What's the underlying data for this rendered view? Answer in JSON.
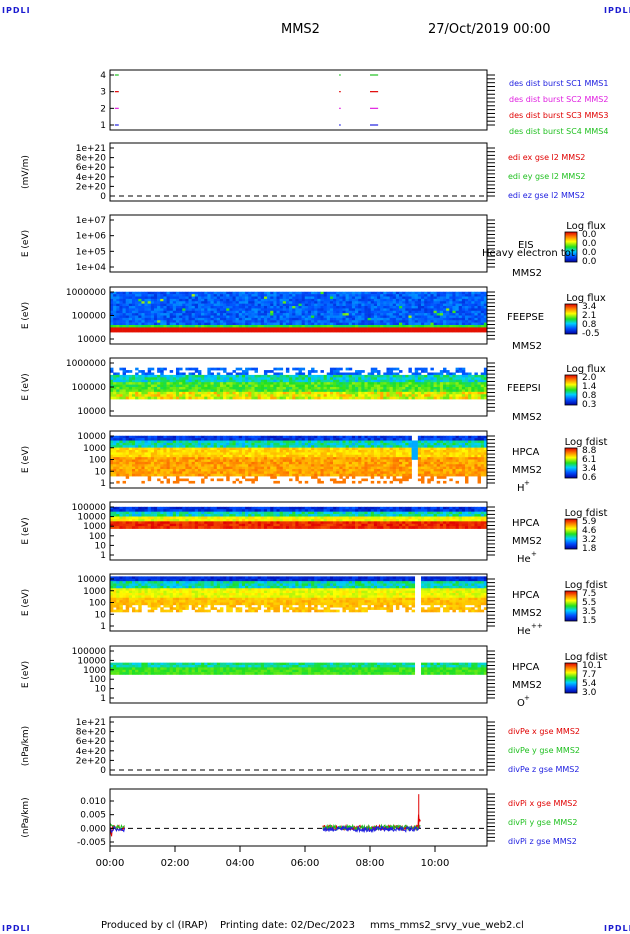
{
  "header": {
    "corner_tl": "IPDLI",
    "corner_tr": "IPDLI",
    "corner_bl": "IPDLI",
    "corner_br": "IPDLI",
    "spacecraft": "MMS2",
    "date": "27/Oct/2019 00:00"
  },
  "footer": {
    "produced_by": "Produced by cl (IRAP)",
    "printing_date": "Printing date: 02/Dec/2023",
    "script": "mms_mms2_srvy_vue_web2.cl"
  },
  "colors": {
    "mms1": "#2020e0",
    "mms2": "#e020e0",
    "mms3": "#e00000",
    "mms4": "#20c020",
    "x": "#e00000",
    "y": "#20c020",
    "z": "#2020e0"
  },
  "chart_data": [
    {
      "id": "burst",
      "type": "scatter",
      "ylabel": "",
      "yticks": [
        "1",
        "2",
        "3",
        "4"
      ],
      "ylim": [
        0.5,
        4.5
      ],
      "series": [
        {
          "name": "des dist burst SC1 MMS1",
          "color": "#2020e0",
          "level": 1,
          "x": [
            0.15,
            7.05,
            8.0
          ],
          "w": [
            0.12,
            0.05,
            0.25
          ]
        },
        {
          "name": "des dist burst SC2 MMS2",
          "color": "#e020e0",
          "level": 2,
          "x": [
            0.15,
            7.05,
            8.0
          ],
          "w": [
            0.12,
            0.05,
            0.25
          ]
        },
        {
          "name": "des dist burst SC3 MMS3",
          "color": "#e00000",
          "level": 3,
          "x": [
            0.15,
            7.05,
            8.0
          ],
          "w": [
            0.12,
            0.05,
            0.25
          ]
        },
        {
          "name": "des dist burst SC4 MMS4",
          "color": "#20c020",
          "level": 4,
          "x": [
            0.15,
            7.05,
            8.0
          ],
          "w": [
            0.12,
            0.05,
            0.25
          ]
        }
      ]
    },
    {
      "id": "edi",
      "type": "line",
      "ylabel": "(mV/m)",
      "yticks": [
        "0",
        "2e+20",
        "4e+20",
        "6e+20",
        "8e+20",
        "1e+21"
      ],
      "ylim": [
        0,
        1e+21
      ],
      "series": [
        {
          "name": "edi ex gse l2 MMS2",
          "color": "#e00000"
        },
        {
          "name": "edi ey gse l2 MMS2",
          "color": "#20c020"
        },
        {
          "name": "edi ez gse l2 MMS2",
          "color": "#2020e0"
        }
      ]
    },
    {
      "id": "eis",
      "type": "heatmap",
      "ylabel": "E (eV)",
      "yticks": [
        "1e+04",
        "1e+05",
        "1e+06",
        "1e+07"
      ],
      "instrument": "EIS",
      "mode_label": "Heavy electron tot",
      "sc": "MMS2",
      "colorbar_title": "Log flux",
      "colorbar_ticks": [
        "0.0",
        "0.0",
        "0.0",
        "0.0"
      ]
    },
    {
      "id": "feepse",
      "type": "heatmap",
      "ylabel": "E (eV)",
      "yticks": [
        "10000",
        "100000",
        "1000000"
      ],
      "instrument": "FEEPSE",
      "sc": "MMS2",
      "colorbar_title": "Log flux",
      "colorbar_ticks": [
        "3.4",
        "2.1",
        "0.8",
        "-0.5"
      ]
    },
    {
      "id": "feepsi",
      "type": "heatmap",
      "ylabel": "E (eV)",
      "yticks": [
        "10000",
        "100000",
        "1000000"
      ],
      "instrument": "FEEPSI",
      "sc": "MMS2",
      "colorbar_title": "Log flux",
      "colorbar_ticks": [
        "2.0",
        "1.4",
        "0.8",
        "0.3"
      ]
    },
    {
      "id": "hpca_h",
      "type": "heatmap",
      "ylabel": "E (eV)",
      "yticks": [
        "1",
        "10",
        "100",
        "1000",
        "10000"
      ],
      "instrument": "HPCA",
      "sc": "MMS2",
      "species": "H",
      "species_sup": "+",
      "colorbar_title": "Log fdist",
      "colorbar_ticks": [
        "8.8",
        "6.1",
        "3.4",
        "0.6"
      ]
    },
    {
      "id": "hpca_he1",
      "type": "heatmap",
      "ylabel": "E (eV)",
      "yticks": [
        "1",
        "10",
        "100",
        "1000",
        "10000",
        "100000"
      ],
      "instrument": "HPCA",
      "sc": "MMS2",
      "species": "He",
      "species_sup": "+",
      "colorbar_title": "Log fdist",
      "colorbar_ticks": [
        "5.9",
        "4.6",
        "3.2",
        "1.8"
      ]
    },
    {
      "id": "hpca_he2",
      "type": "heatmap",
      "ylabel": "E (eV)",
      "yticks": [
        "1",
        "10",
        "100",
        "1000",
        "10000"
      ],
      "instrument": "HPCA",
      "sc": "MMS2",
      "species": "He",
      "species_sup": "++",
      "colorbar_title": "Log fdist",
      "colorbar_ticks": [
        "7.5",
        "5.5",
        "3.5",
        "1.5"
      ]
    },
    {
      "id": "hpca_o",
      "type": "heatmap",
      "ylabel": "E (eV)",
      "yticks": [
        "1",
        "10",
        "100",
        "1000",
        "10000",
        "100000"
      ],
      "instrument": "HPCA",
      "sc": "MMS2",
      "species": "O",
      "species_sup": "+",
      "colorbar_title": "Log fdist",
      "colorbar_ticks": [
        "10.1",
        "7.7",
        "5.4",
        "3.0"
      ]
    },
    {
      "id": "divpe",
      "type": "line",
      "ylabel": "(nPa/km)",
      "yticks": [
        "0",
        "2e+20",
        "4e+20",
        "6e+20",
        "8e+20",
        "1e+21"
      ],
      "ylim": [
        0,
        1e+21
      ],
      "series": [
        {
          "name": "divPe x gse MMS2",
          "color": "#e00000"
        },
        {
          "name": "divPe y gse MMS2",
          "color": "#20c020"
        },
        {
          "name": "divPe z gse MMS2",
          "color": "#2020e0"
        }
      ]
    },
    {
      "id": "divpi",
      "type": "line",
      "ylabel": "(nPa/km)",
      "yticks": [
        "-0.005",
        "0.000",
        "0.005",
        "0.010"
      ],
      "ylim": [
        -0.0075,
        0.0125
      ],
      "series": [
        {
          "name": "divPi x gse MMS2",
          "color": "#e00000"
        },
        {
          "name": "divPi y gse MMS2",
          "color": "#20c020"
        },
        {
          "name": "divPi z gse MMS2",
          "color": "#2020e0"
        }
      ]
    }
  ],
  "time_axis": {
    "ticks": [
      "00:00",
      "02:00",
      "04:00",
      "06:00",
      "08:00",
      "10:00"
    ],
    "range_hours": [
      0,
      11.6
    ]
  }
}
